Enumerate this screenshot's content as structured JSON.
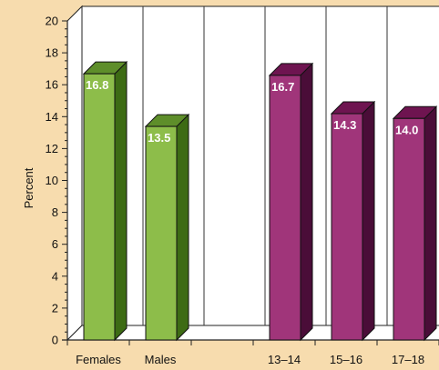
{
  "chart_data": {
    "type": "bar",
    "ylabel": "Percent",
    "ylim": [
      0,
      20
    ],
    "yticks": [
      0,
      2,
      4,
      6,
      8,
      10,
      12,
      14,
      16,
      18,
      20
    ],
    "grid": "vertical lines between categories",
    "categories": [
      "Females",
      "Males",
      "",
      "13–14",
      "15–16",
      "17–18"
    ],
    "values": [
      16.8,
      13.5,
      null,
      16.7,
      14.3,
      14.0
    ],
    "value_labels": [
      "16.8",
      "13.5",
      "",
      "16.7",
      "14.3",
      "14.0"
    ],
    "groups": [
      {
        "categories": [
          "Females",
          "Males"
        ],
        "color": "#8dbd4a",
        "side_color": "#3d6b14",
        "top_color": "#5e8e2a"
      },
      {
        "categories": [
          "13–14",
          "15–16",
          "17–18"
        ],
        "color": "#a0357a",
        "side_color": "#4a0d38",
        "top_color": "#6e1450"
      }
    ]
  }
}
